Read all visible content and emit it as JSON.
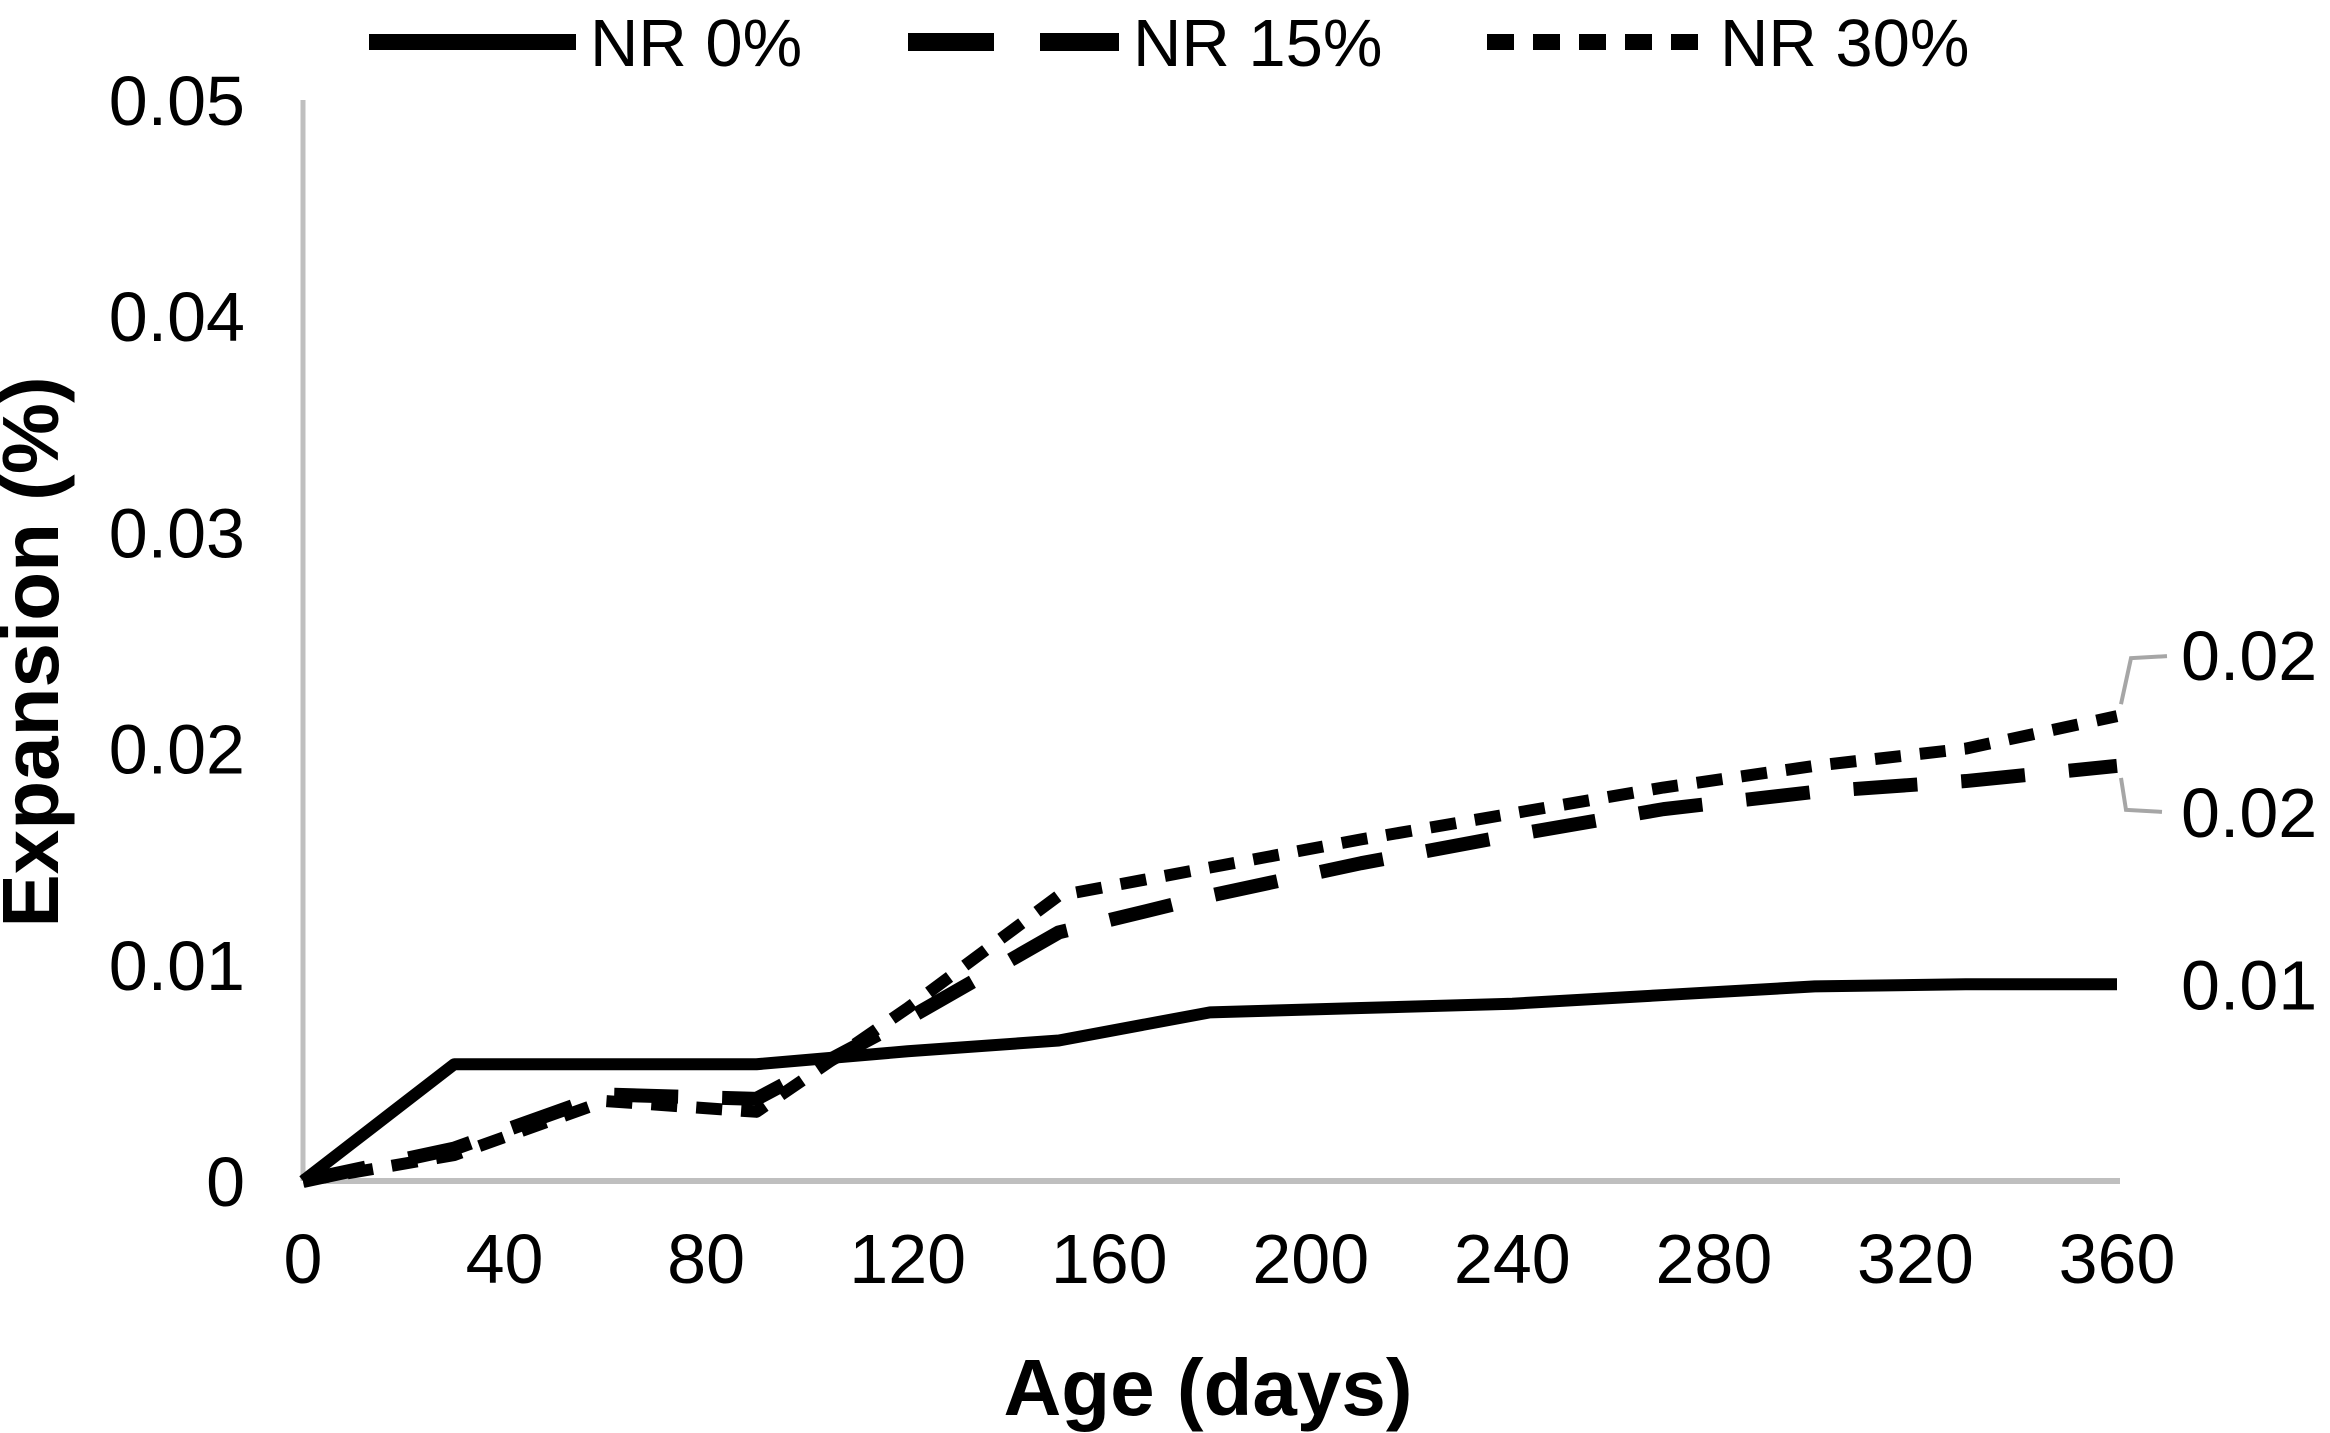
{
  "chart_data": {
    "type": "line",
    "title": "",
    "xlabel": "Age (days)",
    "ylabel": "Expansion (%)",
    "xlim": [
      0,
      360
    ],
    "ylim": [
      0,
      0.05
    ],
    "grid": false,
    "legend_position": "top",
    "x_ticks": [
      "0",
      "40",
      "80",
      "120",
      "160",
      "200",
      "240",
      "280",
      "320",
      "360"
    ],
    "y_ticks": [
      "0",
      "0.01",
      "0.02",
      "0.03",
      "0.04",
      "0.05"
    ],
    "x": [
      0,
      30,
      60,
      90,
      120,
      150,
      180,
      210,
      240,
      270,
      300,
      330,
      360
    ],
    "series": [
      {
        "name": "NR 0%",
        "line_style": "solid",
        "color": "#000000",
        "end_label": "0.01",
        "end_label_side": "right",
        "values": [
          0,
          0.0054,
          0.0054,
          0.0054,
          0.006,
          0.0065,
          0.0078,
          0.008,
          0.0082,
          0.0086,
          0.009,
          0.0091,
          0.0091
        ]
      },
      {
        "name": "NR 15%",
        "line_style": "long-dash",
        "color": "#000000",
        "end_label": "0.02",
        "end_label_side": "below",
        "values": [
          0,
          0.0015,
          0.004,
          0.0038,
          0.0075,
          0.0115,
          0.0132,
          0.0147,
          0.016,
          0.0172,
          0.018,
          0.0185,
          0.0192
        ]
      },
      {
        "name": "NR 30%",
        "line_style": "short-dash",
        "color": "#000000",
        "end_label": "0.02",
        "end_label_side": "above",
        "values": [
          0,
          0.0012,
          0.0037,
          0.0032,
          0.008,
          0.0132,
          0.0145,
          0.0158,
          0.017,
          0.0182,
          0.0192,
          0.02,
          0.0215
        ]
      }
    ],
    "colors": {
      "line": "#000000",
      "axis": "#bfbfbf",
      "leader": "#a6a6a6",
      "text": "#000000",
      "background": "#ffffff"
    }
  }
}
